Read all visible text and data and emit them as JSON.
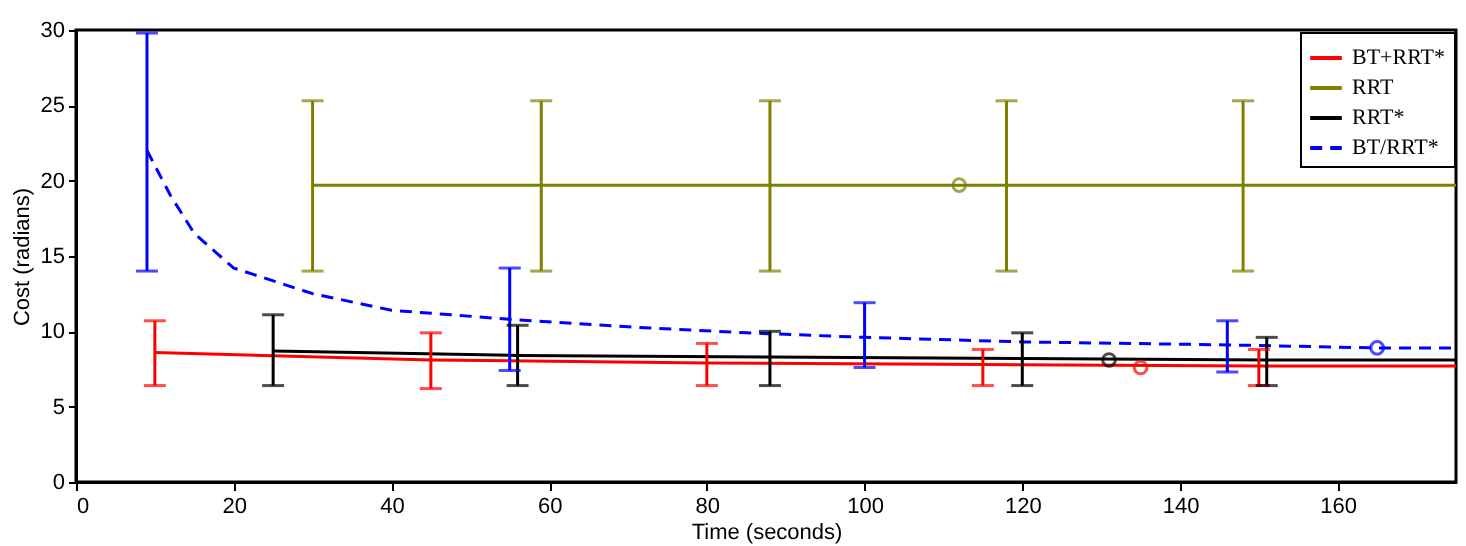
{
  "chart_data": {
    "type": "line",
    "xlabel": "Time (seconds)",
    "ylabel": "Cost (radians)",
    "xlim": [
      0,
      175
    ],
    "ylim": [
      0,
      30
    ],
    "xticks": [
      0,
      20,
      40,
      60,
      80,
      100,
      120,
      140,
      160
    ],
    "yticks": [
      0,
      5,
      10,
      15,
      20,
      25,
      30
    ],
    "grid": false,
    "legend": "top right",
    "series": [
      {
        "name": "BT+RRT*",
        "color": "#ff0000",
        "line_style": "solid",
        "x": [
          10,
          45,
          80,
          115,
          150,
          175
        ],
        "values": [
          8.6,
          8.1,
          7.9,
          7.8,
          7.7,
          7.7
        ],
        "errors": [
          [
            6.4,
            10.7
          ],
          [
            6.2,
            9.9
          ],
          [
            6.4,
            9.2
          ],
          [
            6.4,
            8.8
          ],
          [
            6.4,
            8.8
          ],
          null
        ]
      },
      {
        "name": "RRT",
        "color": "#808000",
        "line_style": "solid",
        "x": [
          30,
          59,
          88,
          118,
          148,
          175
        ],
        "values": [
          19.7,
          19.7,
          19.7,
          19.7,
          19.7,
          19.7
        ],
        "errors": [
          [
            14,
            25.3
          ],
          [
            14,
            25.3
          ],
          [
            14,
            25.3
          ],
          [
            14,
            25.3
          ],
          [
            14,
            25.3
          ],
          null
        ]
      },
      {
        "name": "RRT*",
        "color": "#000000",
        "line_style": "solid",
        "x": [
          25,
          56,
          88,
          120,
          151,
          175
        ],
        "values": [
          8.7,
          8.4,
          8.3,
          8.2,
          8.1,
          8.1
        ],
        "errors": [
          [
            6.4,
            11.1
          ],
          [
            6.4,
            10.4
          ],
          [
            6.4,
            10
          ],
          [
            6.4,
            9.9
          ],
          [
            6.4,
            9.6
          ],
          null
        ]
      },
      {
        "name": "BT/RRT*",
        "color": "#0000ff",
        "line_style": "dashed",
        "x": [
          9,
          12,
          15,
          20,
          30,
          40,
          55,
          70,
          85,
          100,
          120,
          146,
          165,
          175
        ],
        "values": [
          22,
          19,
          16.5,
          14.2,
          12.5,
          11.4,
          10.8,
          10.3,
          9.9,
          9.6,
          9.3,
          9.1,
          8.9,
          8.9
        ],
        "errors": [
          [
            14,
            29.8
          ],
          null,
          null,
          null,
          null,
          null,
          [
            7.4,
            14.2
          ],
          null,
          null,
          [
            7.6,
            11.9
          ],
          null,
          [
            7.3,
            10.7
          ],
          null,
          null
        ]
      },
      {
        "type": "scatter",
        "marker": "circle",
        "color": "#ff0000",
        "x": [
          135
        ],
        "values": [
          7.6
        ]
      },
      {
        "type": "scatter",
        "marker": "circle",
        "color": "#808000",
        "x": [
          112
        ],
        "values": [
          19.7
        ]
      },
      {
        "type": "scatter",
        "marker": "circle",
        "color": "#000000",
        "x": [
          131
        ],
        "values": [
          8.1
        ]
      },
      {
        "type": "scatter",
        "marker": "circle",
        "color": "#0000ff",
        "x": [
          165
        ],
        "values": [
          8.9
        ]
      }
    ]
  }
}
